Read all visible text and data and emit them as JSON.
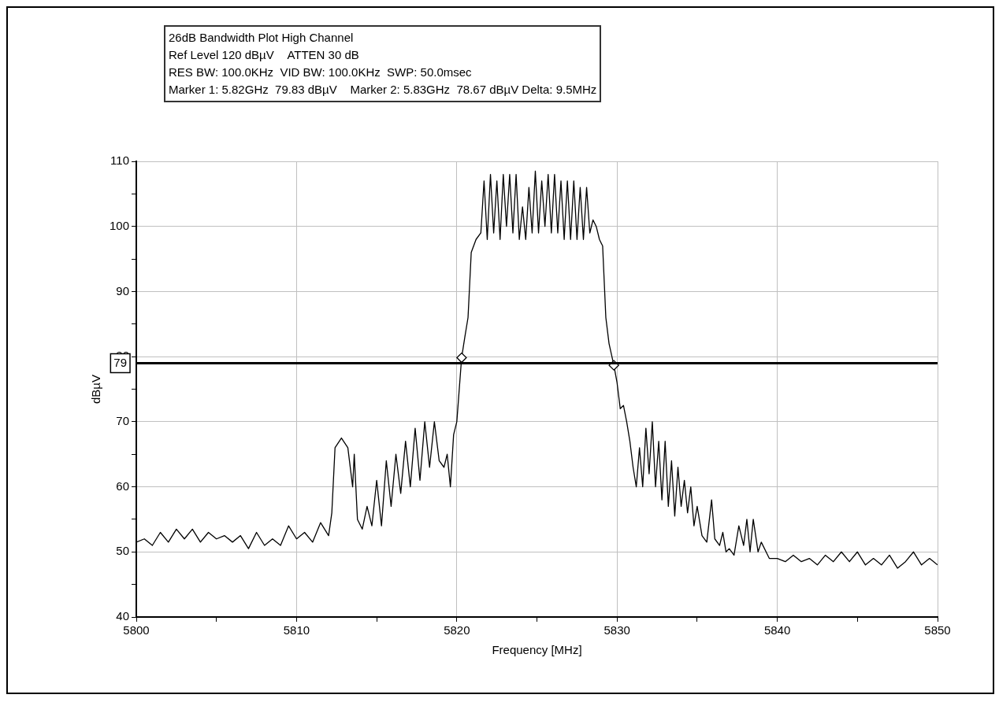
{
  "chart_data": {
    "type": "line",
    "title": "26dB Bandwidth Plot High Channel",
    "subtitle": "Ref Level 120 dBµV    ATTEN 30 dB",
    "annotations": [
      "RES BW: 100.0KHz  VID BW: 100.0KHz  SWP: 50.0msec",
      "Marker 1: 5.82GHz  79.83 dBµV    Marker 2: 5.83GHz  78.67 dBµV Delta: 9.5MHz"
    ],
    "xlabel": "Frequency [MHz]",
    "ylabel": "dBµV",
    "xlim": [
      5800,
      5850
    ],
    "xticks": [
      5800,
      {
        "value": 5805,
        "label": null
      },
      5810,
      {
        "value": 5815,
        "label": null
      },
      5820,
      {
        "value": 5825,
        "label": null
      },
      5830,
      {
        "value": 5835,
        "label": null
      },
      5840,
      {
        "value": 5845,
        "label": null
      },
      5850
    ],
    "ylim": [
      40,
      110
    ],
    "yticks": [
      40,
      {
        "value": 45,
        "label": null
      },
      50,
      {
        "value": 55,
        "label": null
      },
      60,
      {
        "value": 65,
        "label": null
      },
      70,
      {
        "value": 75,
        "label": null
      },
      80,
      {
        "value": 85,
        "label": null
      },
      90,
      {
        "value": 95,
        "label": null
      },
      100,
      {
        "value": 105,
        "label": null
      },
      110
    ],
    "grid": true,
    "legend": false,
    "ref_lines": [
      {
        "axis": "y",
        "value": 79,
        "label": "79",
        "color": "#000000"
      }
    ],
    "series": [
      {
        "color": "#000000",
        "marker": "none",
        "x": [
          5800,
          5800.5,
          5801,
          5801.5,
          5802,
          5802.5,
          5803,
          5803.5,
          5804,
          5804.5,
          5805,
          5805.5,
          5806,
          5806.5,
          5807,
          5807.5,
          5808,
          5808.5,
          5809,
          5809.5,
          5810,
          5810.5,
          5811,
          5811.5,
          5812,
          5812.2,
          5812.4,
          5812.8,
          5813.2,
          5813.5,
          5813.6,
          5813.8,
          5814.1,
          5814.4,
          5814.7,
          5815,
          5815.3,
          5815.6,
          5815.9,
          5816.2,
          5816.5,
          5816.8,
          5817.1,
          5817.4,
          5817.7,
          5818,
          5818.3,
          5818.6,
          5818.9,
          5819.2,
          5819.4,
          5819.6,
          5819.8,
          5820,
          5820.3,
          5820.5,
          5820.7,
          5820.9,
          5821.2,
          5821.5,
          5821.7,
          5821.9,
          5822.1,
          5822.3,
          5822.5,
          5822.7,
          5822.9,
          5823.1,
          5823.3,
          5823.5,
          5823.7,
          5823.9,
          5824.1,
          5824.3,
          5824.5,
          5824.7,
          5824.9,
          5825.1,
          5825.3,
          5825.5,
          5825.7,
          5825.9,
          5826.1,
          5826.3,
          5826.5,
          5826.7,
          5826.9,
          5827.1,
          5827.3,
          5827.5,
          5827.7,
          5827.9,
          5828.1,
          5828.3,
          5828.5,
          5828.7,
          5828.9,
          5829.1,
          5829.3,
          5829.5,
          5829.8,
          5830,
          5830.2,
          5830.4,
          5830.6,
          5830.8,
          5831,
          5831.2,
          5831.4,
          5831.6,
          5831.8,
          5832,
          5832.2,
          5832.4,
          5832.6,
          5832.8,
          5833,
          5833.2,
          5833.4,
          5833.6,
          5833.8,
          5834,
          5834.2,
          5834.4,
          5834.6,
          5834.8,
          5835,
          5835.3,
          5835.6,
          5835.9,
          5836.1,
          5836.4,
          5836.6,
          5836.8,
          5837,
          5837.3,
          5837.6,
          5837.9,
          5838.1,
          5838.3,
          5838.5,
          5838.8,
          5839,
          5839.5,
          5840,
          5840.5,
          5841,
          5841.5,
          5842,
          5842.5,
          5843,
          5843.5,
          5844,
          5844.5,
          5845,
          5845.5,
          5846,
          5846.5,
          5847,
          5847.5,
          5848,
          5848.5,
          5849,
          5849.5,
          5850
        ],
        "values": [
          51.5,
          52,
          51,
          53,
          51.5,
          53.5,
          52,
          53.5,
          51.5,
          53,
          52,
          52.5,
          51.5,
          52.5,
          50.5,
          53,
          51,
          52,
          51,
          54,
          52,
          53,
          51.5,
          54.5,
          52.5,
          56,
          66,
          67.5,
          66,
          60,
          65,
          55,
          53.5,
          57,
          54,
          61,
          54,
          64,
          57,
          65,
          59,
          67,
          60,
          69,
          61,
          70,
          63,
          70,
          64,
          63,
          65,
          60,
          68,
          70,
          79.83,
          83,
          86,
          96,
          98,
          99,
          107,
          98,
          108,
          99,
          107,
          98,
          108,
          100,
          108,
          99,
          108,
          98,
          103,
          98,
          106,
          99,
          108.5,
          99,
          107,
          100,
          108,
          99,
          108,
          99,
          107,
          98,
          107,
          98,
          107,
          98,
          106,
          98,
          106,
          99,
          101,
          100,
          98,
          97,
          86,
          82,
          78.67,
          76,
          72,
          72.5,
          70,
          67,
          63,
          60,
          66,
          60,
          69,
          62,
          70,
          60,
          67,
          58,
          67,
          57,
          64,
          55.5,
          63,
          57,
          61,
          56,
          60,
          54,
          57,
          52.5,
          51.5,
          58,
          52,
          51,
          53,
          50,
          50.5,
          49.5,
          54,
          51,
          55,
          50,
          55,
          50,
          51.5,
          49,
          49,
          48.5,
          49.5,
          48.5,
          49,
          48,
          49.5,
          48.5,
          50,
          48.5,
          50,
          48,
          49,
          48,
          49.5,
          47.5,
          48.5,
          50,
          48,
          49,
          48
        ]
      },
      {
        "type": "scatter",
        "color": "#000000",
        "marker": "diamond",
        "x": [
          5820.3,
          5829.8
        ],
        "values": [
          79.83,
          78.67
        ]
      }
    ]
  }
}
